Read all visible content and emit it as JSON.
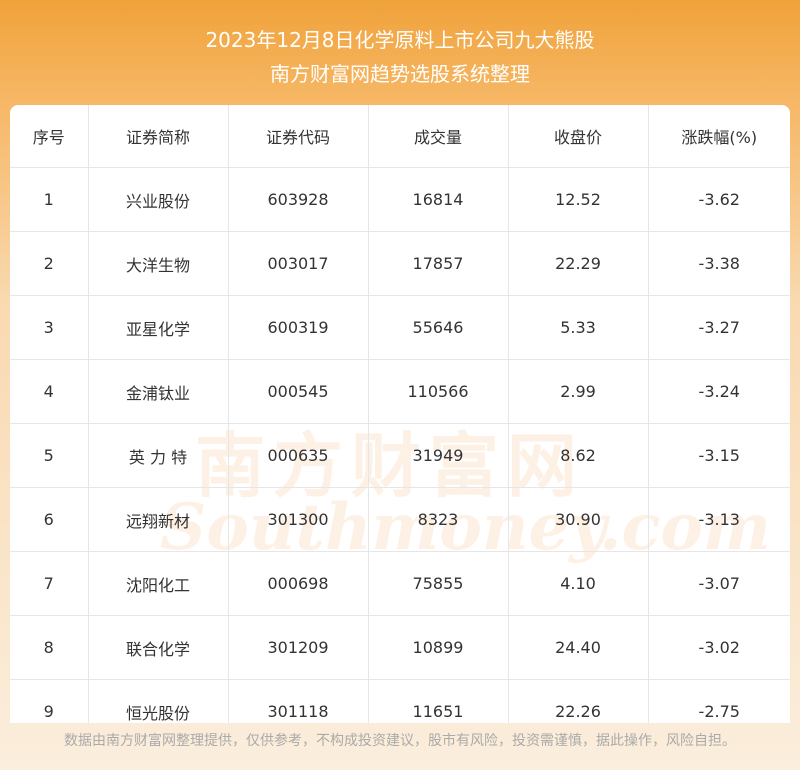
{
  "header": {
    "title": "2023年12月8日化学原料上市公司九大熊股",
    "subtitle": "南方财富网趋势选股系统整理"
  },
  "table": {
    "columns": [
      "序号",
      "证券简称",
      "证券代码",
      "成交量",
      "收盘价",
      "涨跌幅(%)"
    ],
    "rows": [
      [
        "1",
        "兴业股份",
        "603928",
        "16814",
        "12.52",
        "-3.62"
      ],
      [
        "2",
        "大洋生物",
        "003017",
        "17857",
        "22.29",
        "-3.38"
      ],
      [
        "3",
        "亚星化学",
        "600319",
        "55646",
        "5.33",
        "-3.27"
      ],
      [
        "4",
        "金浦钛业",
        "000545",
        "110566",
        "2.99",
        "-3.24"
      ],
      [
        "5",
        "英 力 特",
        "000635",
        "31949",
        "8.62",
        "-3.15"
      ],
      [
        "6",
        "远翔新材",
        "301300",
        "8323",
        "30.90",
        "-3.13"
      ],
      [
        "7",
        "沈阳化工",
        "000698",
        "75855",
        "4.10",
        "-3.07"
      ],
      [
        "8",
        "联合化学",
        "301209",
        "10899",
        "24.40",
        "-3.02"
      ],
      [
        "9",
        "恒光股份",
        "301118",
        "11651",
        "22.26",
        "-2.75"
      ]
    ]
  },
  "watermark": {
    "name": "南方财富网",
    "site": "Southmoney.com"
  },
  "footer": {
    "note": "数据由南方财富网整理提供，仅供参考，不构成投资建议，股市有风险，投资需谨慎，据此操作，风险自担。"
  }
}
